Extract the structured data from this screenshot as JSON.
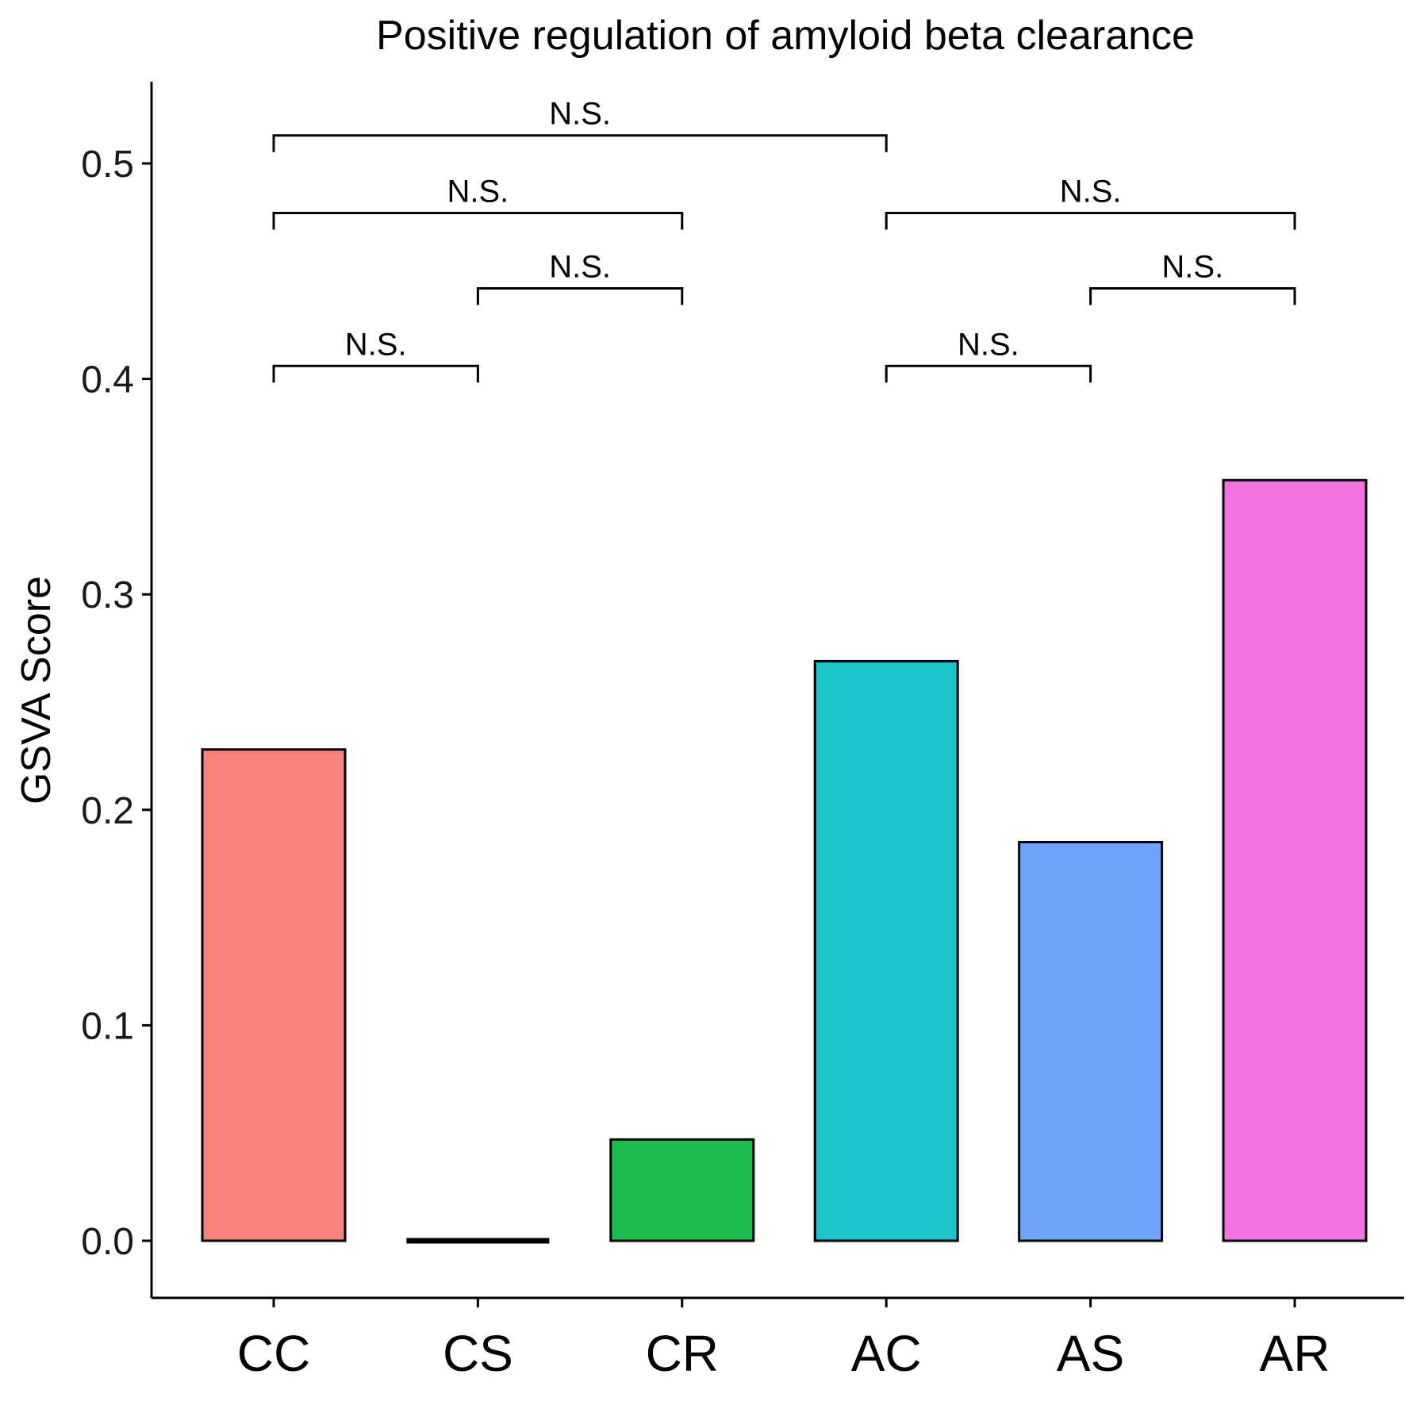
{
  "chart_data": {
    "type": "bar",
    "title": "Positive regulation of amyloid beta clearance",
    "xlabel": "",
    "ylabel": "GSVA Score",
    "categories": [
      "CC",
      "CS",
      "CR",
      "AC",
      "AS",
      "AR"
    ],
    "values": [
      0.228,
      0.0,
      0.047,
      0.269,
      0.185,
      0.353
    ],
    "colors": [
      "#F8837B",
      "#000000",
      "#1BBE4E",
      "#1DC4CA",
      "#6FA4FD",
      "#F572E3"
    ],
    "yticks": [
      0.0,
      0.1,
      0.2,
      0.3,
      0.4,
      0.5
    ],
    "ytick_labels": [
      "0.0",
      "0.1",
      "0.2",
      "0.3",
      "0.4",
      "0.5"
    ],
    "ylim": [
      -0.026,
      0.538
    ],
    "grid": false,
    "legend": "none",
    "comparisons": [
      {
        "from": "CC",
        "to": "CS",
        "y": 0.406,
        "label": "N.S."
      },
      {
        "from": "CS",
        "to": "CR",
        "y": 0.442,
        "label": "N.S."
      },
      {
        "from": "CC",
        "to": "CR",
        "y": 0.477,
        "label": "N.S."
      },
      {
        "from": "CC",
        "to": "AC",
        "y": 0.513,
        "label": "N.S."
      },
      {
        "from": "AC",
        "to": "AS",
        "y": 0.406,
        "label": "N.S."
      },
      {
        "from": "AS",
        "to": "AR",
        "y": 0.442,
        "label": "N.S."
      },
      {
        "from": "AC",
        "to": "AR",
        "y": 0.477,
        "label": "N.S."
      }
    ]
  }
}
